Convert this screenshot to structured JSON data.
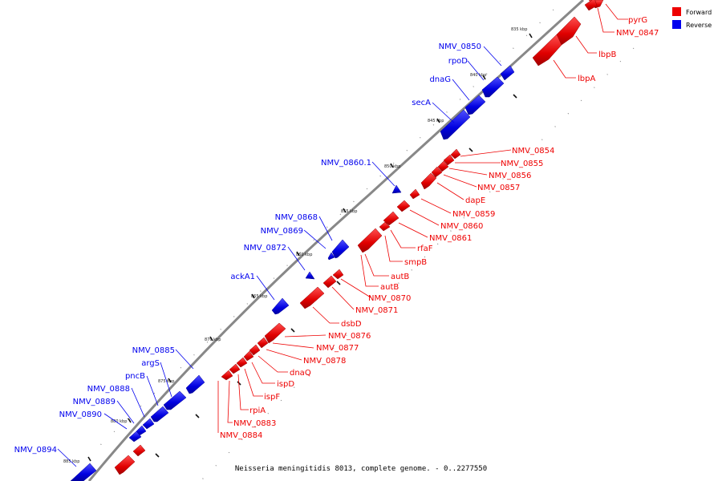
{
  "caption": "Neisseria meningitidis 8013, complete genome. - 0..2277550",
  "legend": [
    {
      "label": "Forward",
      "color": "#ee0000"
    },
    {
      "label": "Reverse",
      "color": "#0000ee"
    }
  ],
  "colors": {
    "forward": "#ee0000",
    "reverse": "#0000ee",
    "backbone": "#808080"
  },
  "ticks": [
    "835 kbp",
    "840 kbp",
    "845 kbp",
    "850 kbp",
    "855 kbp",
    "860 kbp",
    "865 kbp",
    "870 kbp",
    "875 kbp",
    "880 kbp",
    "885 kbp"
  ],
  "forward_genes": [
    "pyrG",
    "NMV_0847",
    "lbpB",
    "lbpA",
    "NMV_0854",
    "NMV_0855",
    "NMV_0856",
    "NMV_0857",
    "dapE",
    "NMV_0859",
    "NMV_0860",
    "NMV_0861",
    "rfaF",
    "smpB",
    "autB",
    "autB",
    "NMV_0870",
    "NMV_0871",
    "dsbD",
    "NMV_0876",
    "NMV_0877",
    "NMV_0878",
    "dnaQ",
    "ispD",
    "ispF",
    "rpiA",
    "NMV_0883",
    "NMV_0884"
  ],
  "reverse_genes": [
    "NMV_0850",
    "rpoD",
    "dnaG",
    "secA",
    "NMV_0860.1",
    "NMV_0868",
    "NMV_0869",
    "NMV_0872",
    "ackA1",
    "NMV_0885",
    "argS",
    "pncB",
    "NMV_0888",
    "NMV_0889",
    "NMV_0890",
    "NMV_0894"
  ]
}
